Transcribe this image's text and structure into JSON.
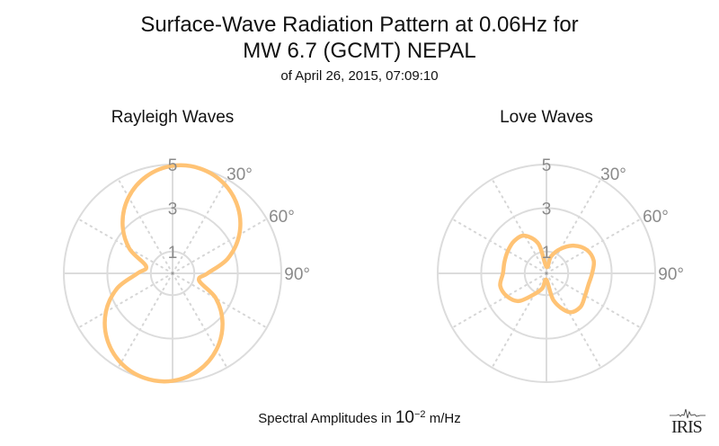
{
  "header": {
    "title_line1": "Surface-Wave Radiation Pattern at 0.06Hz for",
    "title_line2": "MW 6.7 (GCMT) NEPAL",
    "subtitle": "of April 26, 2015, 07:09:10"
  },
  "footer": {
    "label_prefix": "Spectral Amplitudes in ",
    "label_base": "10",
    "label_exp": "−2",
    "label_unit": " m/Hz"
  },
  "logo": {
    "text": "IRIS"
  },
  "chart_data": [
    {
      "type": "polar-line",
      "title": "Rayleigh Waves",
      "color": "#FFC375",
      "r_ticks": [
        "1",
        "3",
        "5"
      ],
      "r_tick_values": [
        1,
        3,
        5
      ],
      "rlim": [
        0,
        5
      ],
      "angle_labels": [
        "30°",
        "60°",
        "90°"
      ],
      "angle_label_values": [
        30,
        60,
        90
      ],
      "azimuth_deg": [
        0,
        15,
        30,
        45,
        60,
        75,
        90,
        105,
        120,
        135,
        150,
        165,
        180,
        195,
        210,
        225,
        240,
        255,
        270,
        285,
        300,
        315,
        330,
        345
      ],
      "amplitude": [
        4.94,
        4.98,
        4.75,
        4.26,
        3.54,
        2.63,
        1.61,
        1.26,
        2.3,
        3.25,
        4.04,
        4.62,
        4.94,
        4.98,
        4.75,
        4.26,
        3.54,
        2.63,
        1.61,
        1.26,
        2.3,
        3.25,
        4.04,
        4.62
      ]
    },
    {
      "type": "polar-line",
      "title": "Love Waves",
      "color": "#FFC375",
      "r_ticks": [
        "1",
        "3",
        "5"
      ],
      "r_tick_values": [
        1,
        3,
        5
      ],
      "rlim": [
        0,
        5
      ],
      "angle_labels": [
        "30°",
        "60°",
        "90°"
      ],
      "angle_label_values": [
        30,
        60,
        90
      ],
      "azimuth_deg": [
        0,
        15,
        30,
        45,
        60,
        75,
        90,
        105,
        120,
        135,
        150,
        165,
        180,
        195,
        210,
        225,
        240,
        255,
        270,
        285,
        300,
        315,
        330,
        345
      ],
      "amplitude": [
        0.3,
        0.8,
        1.3,
        1.8,
        2.15,
        2.25,
        2.1,
        2.0,
        2.05,
        2.2,
        2.05,
        1.3,
        0.3,
        0.7,
        1.1,
        1.8,
        2.1,
        2.2,
        2.0,
        2.0,
        2.05,
        2.1,
        2.0,
        1.4
      ]
    }
  ]
}
